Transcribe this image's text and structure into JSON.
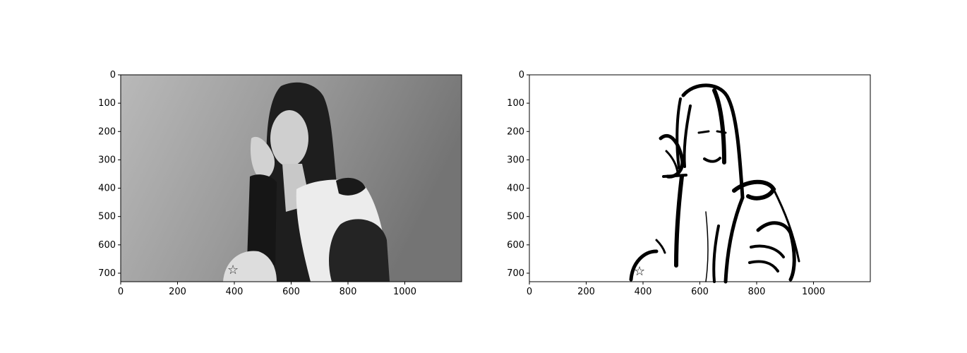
{
  "chart_data": [
    {
      "type": "image",
      "title": "",
      "content": "grayscale photograph",
      "xlim": [
        0,
        1200
      ],
      "ylim": [
        730,
        0
      ],
      "xticks": [
        0,
        200,
        400,
        600,
        800,
        1000
      ],
      "yticks": [
        0,
        100,
        200,
        300,
        400,
        500,
        600,
        700
      ]
    },
    {
      "type": "image",
      "title": "",
      "content": "binary edge / threshold image",
      "xlim": [
        0,
        1200
      ],
      "ylim": [
        730,
        0
      ],
      "xticks": [
        0,
        200,
        400,
        600,
        800,
        1000
      ],
      "yticks": [
        0,
        100,
        200,
        300,
        400,
        500,
        600,
        700
      ]
    }
  ],
  "colors": {
    "frame": "#000000",
    "background": "#ffffff",
    "ink": "#000000"
  }
}
